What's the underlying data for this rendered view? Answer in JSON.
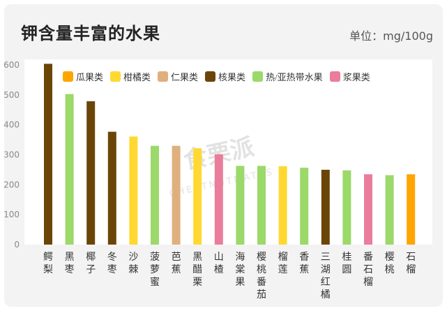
{
  "header": {
    "title": "钾含量丰富的水果",
    "unit": "单位：mg/100g"
  },
  "watermark": {
    "text": "食栗派",
    "subtext": "CHESTNUTMATES"
  },
  "chart_data": {
    "type": "bar",
    "title": "钾含量丰富的水果",
    "ylabel": "",
    "xlabel": "",
    "ylim": [
      0,
      600
    ],
    "yticks": [
      0,
      100,
      200,
      300,
      400,
      500,
      600
    ],
    "grid": false,
    "legend_position": "top",
    "categories": [
      "鳄梨",
      "黑枣",
      "椰子",
      "冬枣",
      "沙棘",
      "菠萝蜜",
      "芭蕉",
      "黑醋栗",
      "山楂",
      "海棠果",
      "樱桃番茄",
      "榴莲",
      "香蕉",
      "三湖红橘",
      "桂圆",
      "番石榴",
      "樱桃",
      "石榴"
    ],
    "values": [
      604,
      503,
      479,
      377,
      361,
      330,
      330,
      322,
      302,
      263,
      263,
      262,
      257,
      250,
      248,
      235,
      232,
      235
    ],
    "groups": [
      "核果类",
      "热/亚热带水果",
      "核果类",
      "核果类",
      "柑橘类",
      "热/亚热带水果",
      "仁果类",
      "柑橘类",
      "浆果类",
      "热/亚热带水果",
      "热/亚热带水果",
      "柑橘类",
      "热/亚热带水果",
      "核果类",
      "热/亚热带水果",
      "浆果类",
      "热/亚热带水果",
      "瓜果类"
    ],
    "legend": [
      {
        "name": "瓜果类",
        "color": "#ffa500"
      },
      {
        "name": "柑橘类",
        "color": "#ffd932"
      },
      {
        "name": "仁果类",
        "color": "#dfb07e"
      },
      {
        "name": "核果类",
        "color": "#6b4508"
      },
      {
        "name": "热/亚热带水果",
        "color": "#9bd96a"
      },
      {
        "name": "浆果类",
        "color": "#ea7d9b"
      }
    ]
  }
}
